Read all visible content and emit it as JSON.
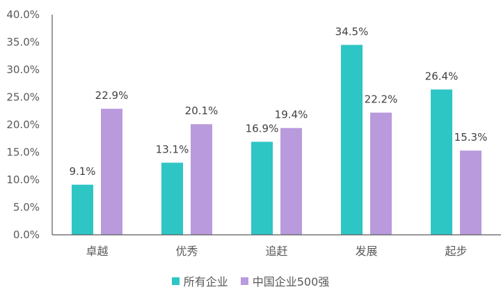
{
  "chart_data": {
    "type": "bar",
    "categories": [
      "卓越",
      "优秀",
      "追赶",
      "发展",
      "起步"
    ],
    "series": [
      {
        "name": "所有企业",
        "values": [
          9.1,
          13.1,
          16.9,
          34.5,
          26.4
        ],
        "color": "#2EC5C5",
        "labels": [
          "9.1%",
          "13.1%",
          "16.9%",
          "34.5%",
          "26.4%"
        ]
      },
      {
        "name": "中国企业500强",
        "values": [
          22.9,
          20.1,
          19.4,
          22.2,
          15.3
        ],
        "color": "#B99BDD",
        "labels": [
          "22.9%",
          "20.1%",
          "19.4%",
          "22.2%",
          "15.3%"
        ]
      }
    ],
    "yticks": [
      "0.0%",
      "5.0%",
      "10.0%",
      "15.0%",
      "20.0%",
      "25.0%",
      "30.0%",
      "35.0%",
      "40.0%"
    ],
    "ylim": [
      0,
      40
    ],
    "grid": false,
    "legend_position": "bottom"
  }
}
